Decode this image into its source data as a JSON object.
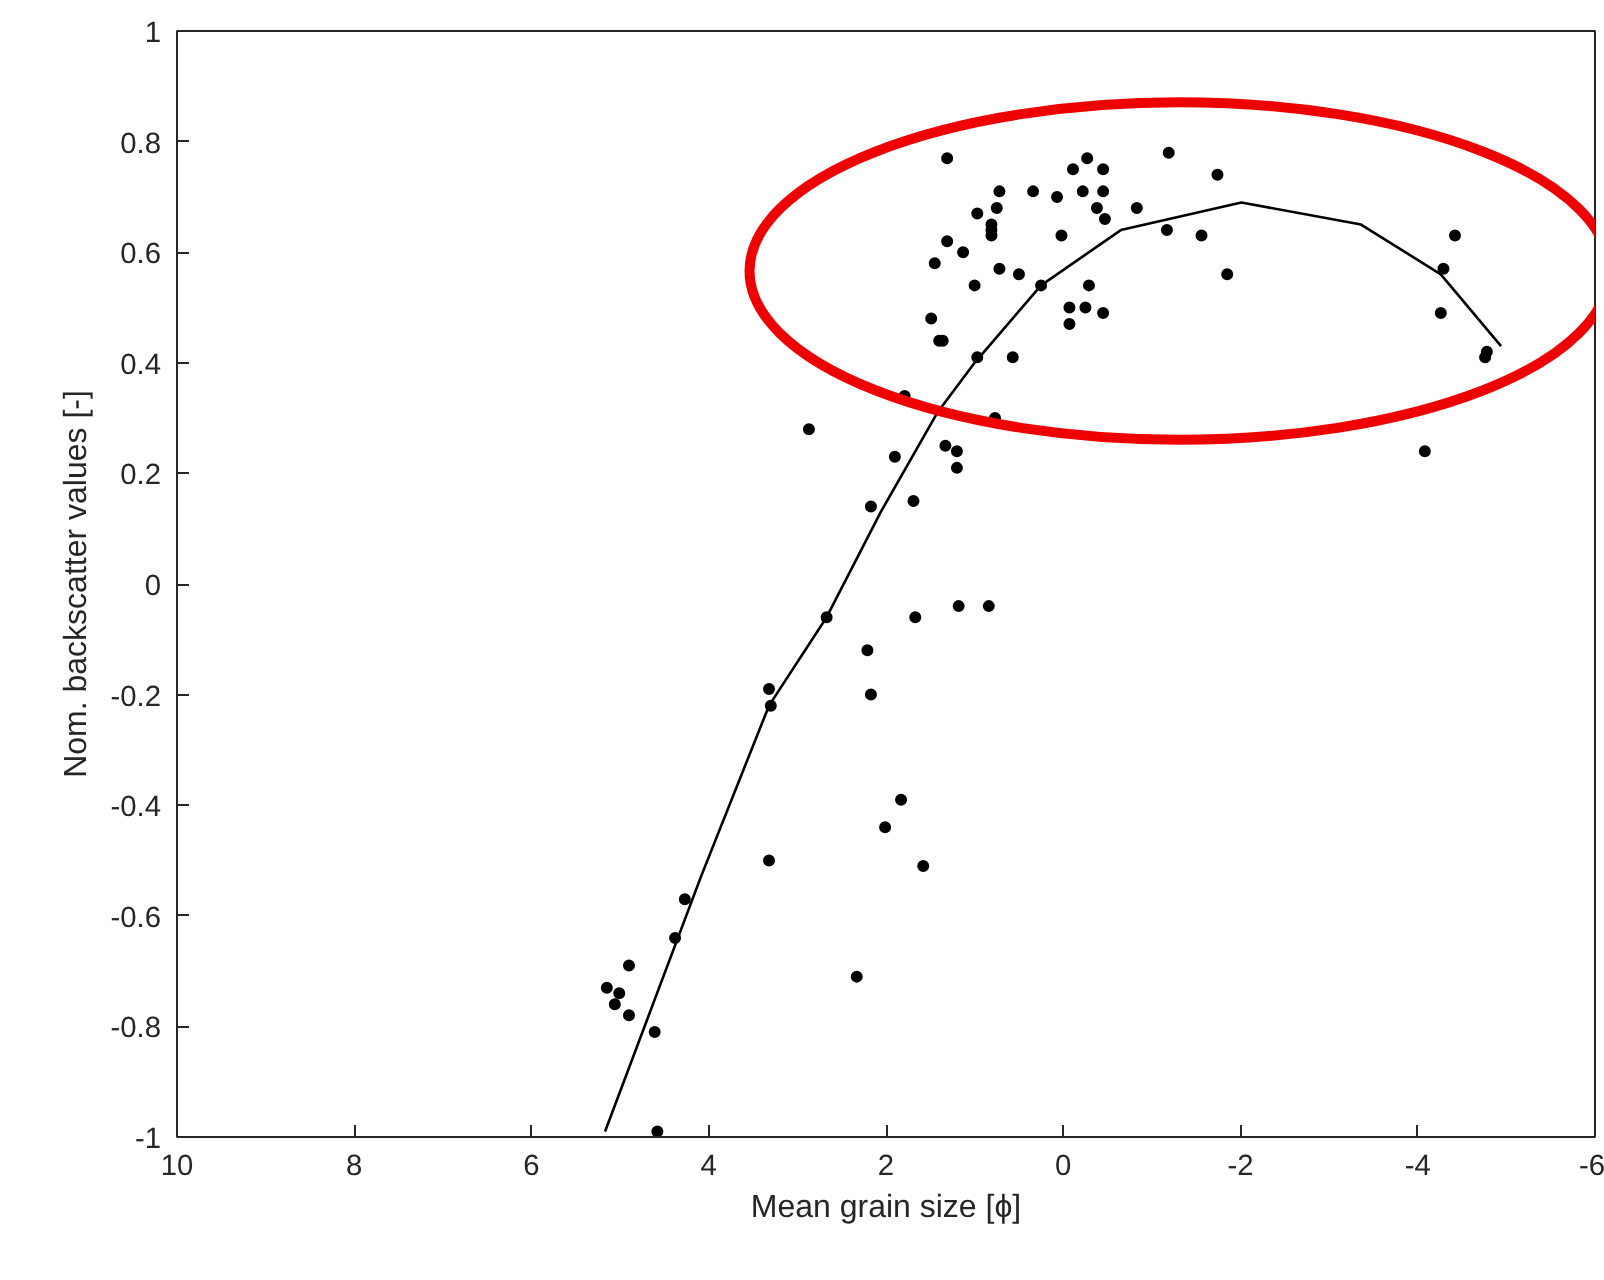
{
  "chart_data": {
    "type": "scatter",
    "xlabel": "Mean grain size [ϕ]",
    "ylabel": "Nom. backscatter values [-]",
    "xlim": [
      10,
      -6
    ],
    "xticks": [
      10,
      8,
      6,
      4,
      2,
      0,
      -2,
      -4,
      -6
    ],
    "ylim": [
      -1,
      1
    ],
    "yticks": [
      -1,
      -0.8,
      -0.6,
      -0.4,
      -0.2,
      0,
      0.2,
      0.4,
      0.6,
      0.8,
      1
    ],
    "grid": false,
    "marker": "circle",
    "series": [
      {
        "color": "#000000",
        "x": [
          1.31,
          -0.27,
          -0.11,
          -0.45,
          -1.19,
          -1.74,
          0.72,
          0.34,
          0.07,
          -0.22,
          -0.45,
          0.97,
          0.75,
          0.81,
          0.81,
          0.81,
          -0.38,
          -0.47,
          -0.83,
          0.02,
          -1.17,
          -1.56,
          -1.85,
          1.31,
          1.13,
          1.45,
          1.0,
          0.72,
          0.5,
          0.25,
          -0.29,
          -0.07,
          -0.25,
          -0.45,
          -0.07,
          1.49,
          1.4,
          1.36,
          0.97,
          0.57,
          1.79,
          2.87,
          0.77,
          1.9,
          1.33,
          1.2,
          1.2,
          2.17,
          1.69,
          2.67,
          1.67,
          1.18,
          0.84,
          2.21,
          2.17,
          3.32,
          3.3,
          1.83,
          2.01,
          3.32,
          1.58,
          4.27,
          4.38,
          4.9,
          5.15,
          5.01,
          5.06,
          4.9,
          4.61,
          2.33,
          4.58,
          -4.42,
          -4.29,
          -4.26,
          -4.78,
          -4.76,
          -4.08
        ],
        "values": [
          0.77,
          0.77,
          0.75,
          0.75,
          0.78,
          0.74,
          0.71,
          0.71,
          0.7,
          0.71,
          0.71,
          0.67,
          0.68,
          0.65,
          0.64,
          0.63,
          0.68,
          0.66,
          0.68,
          0.63,
          0.64,
          0.63,
          0.56,
          0.62,
          0.6,
          0.58,
          0.54,
          0.57,
          0.56,
          0.54,
          0.54,
          0.5,
          0.5,
          0.49,
          0.47,
          0.48,
          0.44,
          0.44,
          0.41,
          0.41,
          0.34,
          0.28,
          0.3,
          0.23,
          0.25,
          0.24,
          0.21,
          0.14,
          0.15,
          -0.06,
          -0.06,
          -0.04,
          -0.04,
          -0.12,
          -0.2,
          -0.19,
          -0.22,
          -0.39,
          -0.44,
          -0.5,
          -0.51,
          -0.57,
          -0.64,
          -0.69,
          -0.73,
          -0.74,
          -0.76,
          -0.78,
          -0.81,
          -0.71,
          -0.99,
          0.63,
          0.57,
          0.49,
          0.42,
          0.41,
          0.24
        ]
      },
      {
        "type": "line",
        "marker": "none",
        "color": "#000000",
        "line_style": "solid",
        "x": [
          5.17,
          4.09,
          3.32,
          2.67,
          2.06,
          1.42,
          1.0,
          0.25,
          -0.65,
          -2.01,
          -3.36,
          -4.26,
          -4.94
        ],
        "values": [
          -0.99,
          -0.53,
          -0.22,
          -0.06,
          0.13,
          0.31,
          0.4,
          0.54,
          0.64,
          0.69,
          0.65,
          0.56,
          0.43
        ]
      }
    ]
  }
}
